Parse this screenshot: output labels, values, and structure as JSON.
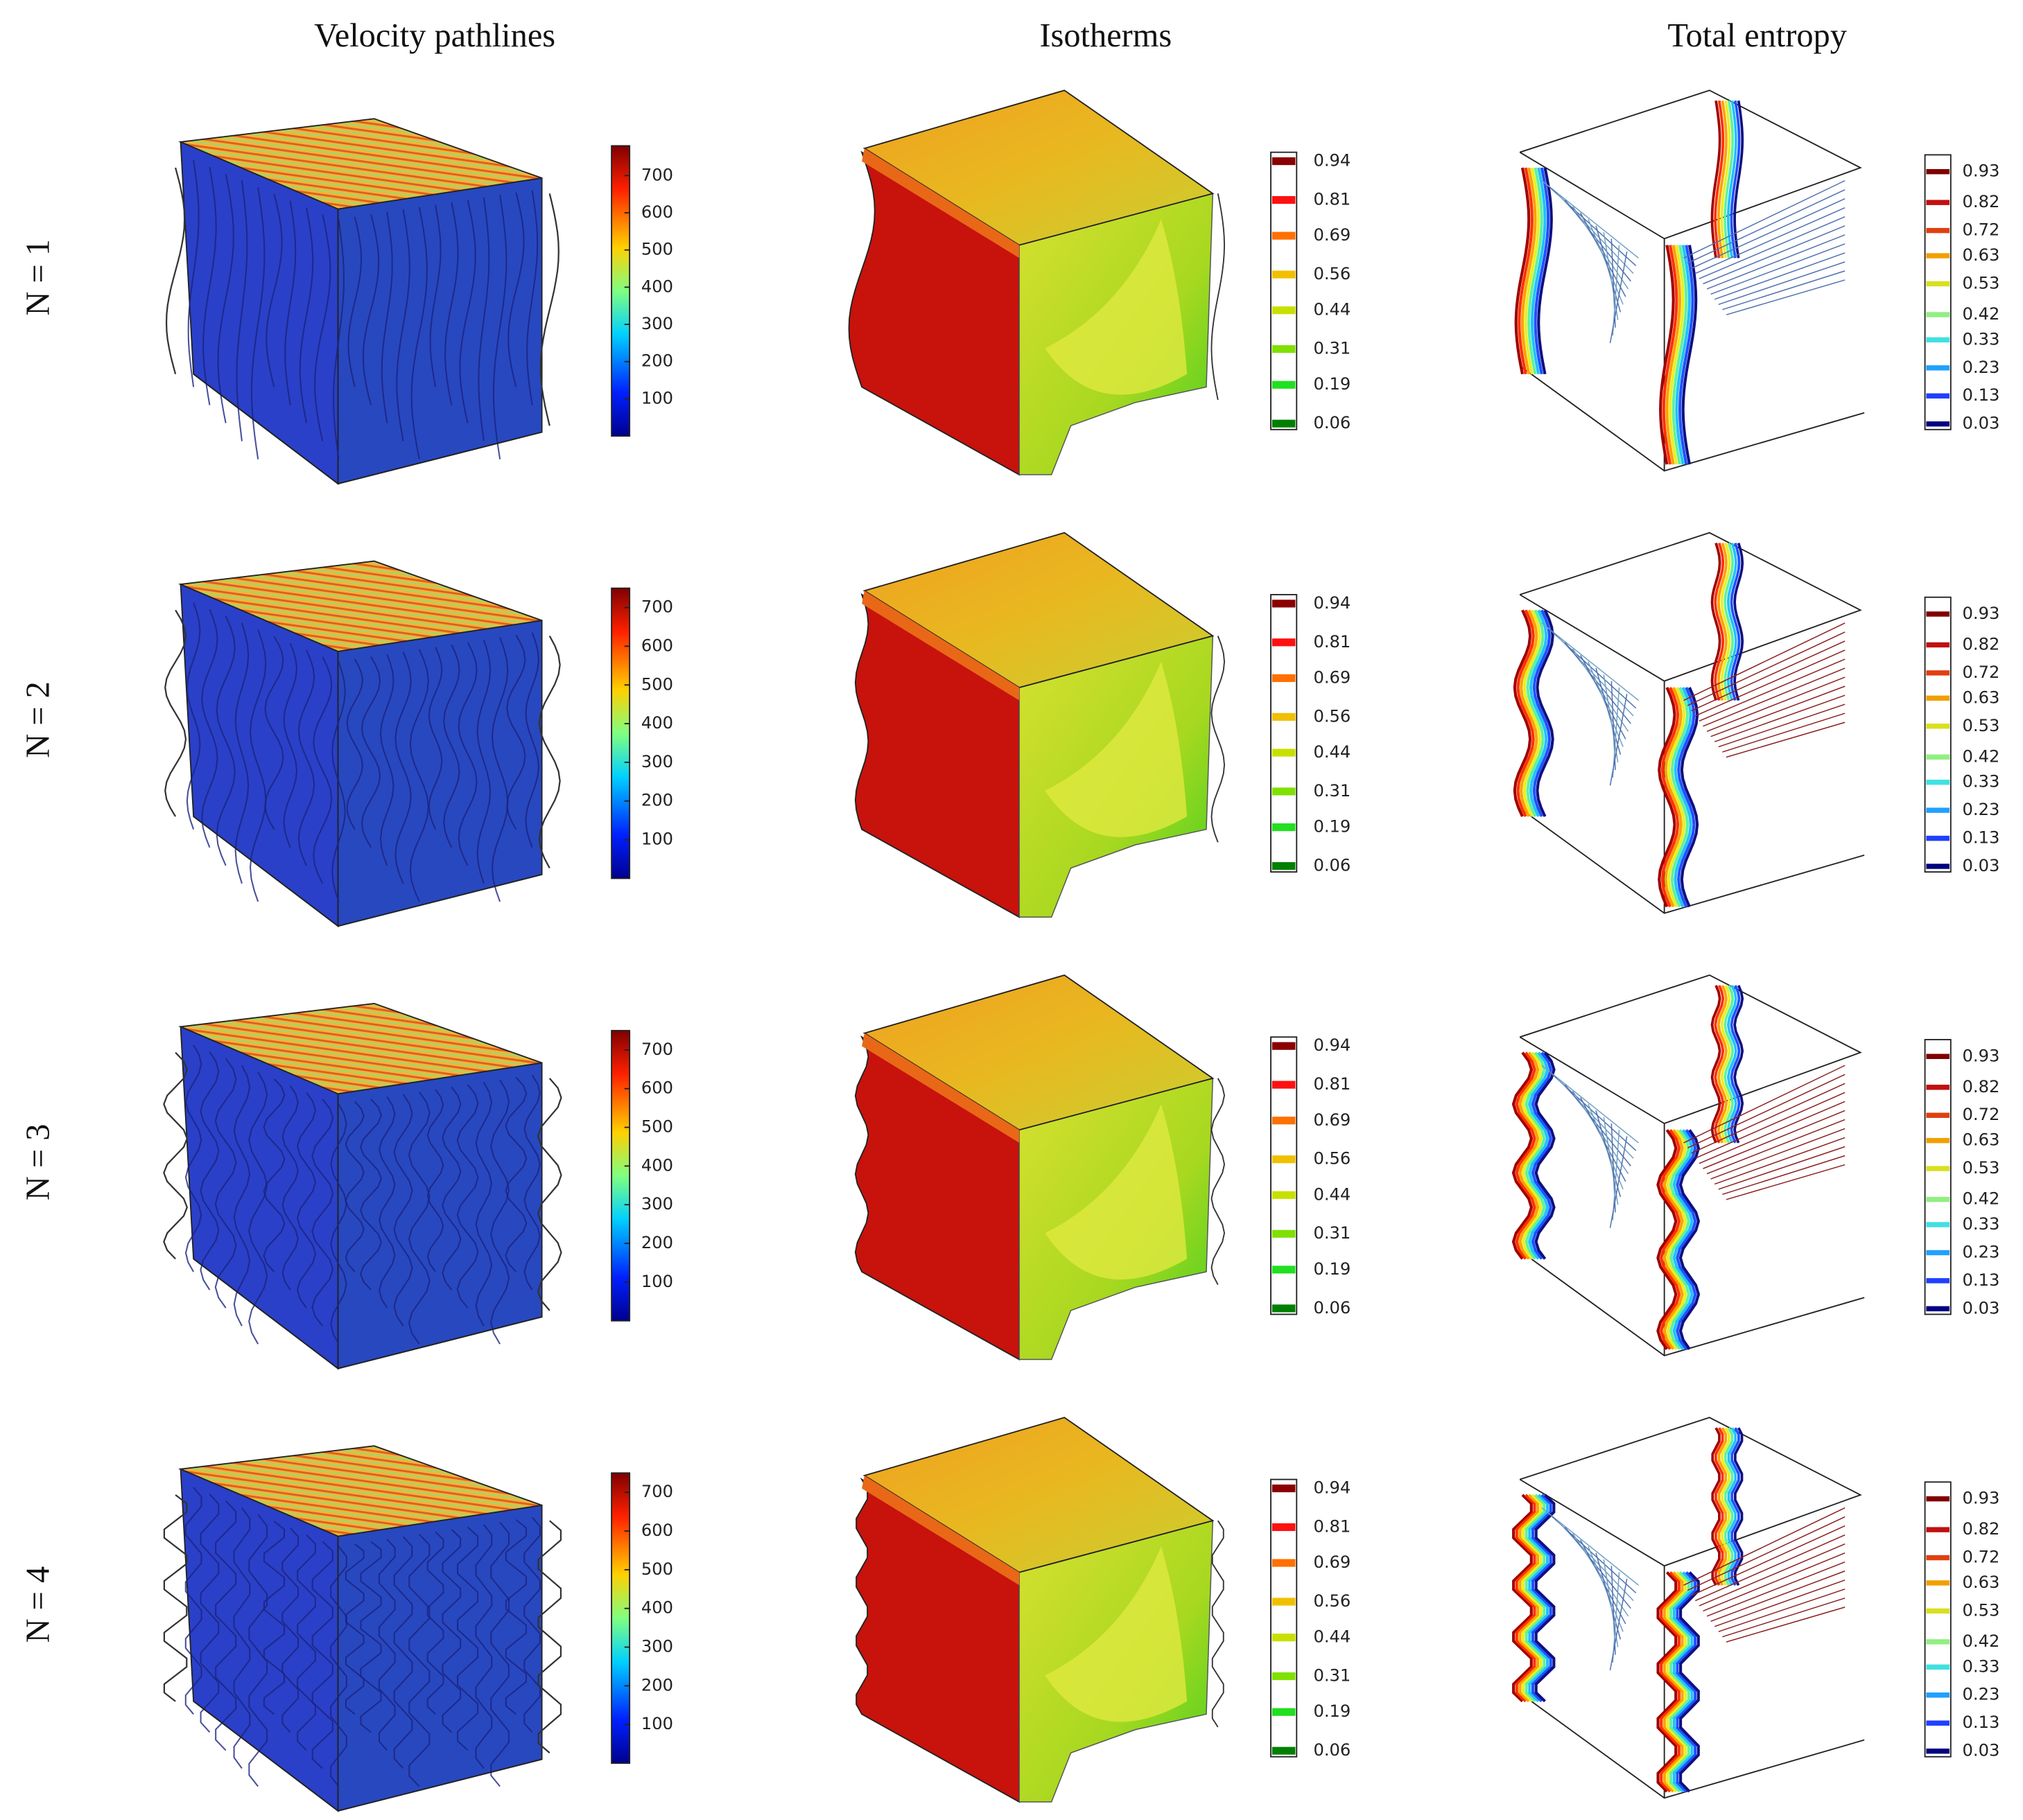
{
  "columns": [
    {
      "title": "Velocity pathlines",
      "colorbar": {
        "ticks": [
          100,
          200,
          300,
          400,
          500,
          600,
          700
        ],
        "limits": [
          [
            0,
            780
          ],
          [
            0,
            750
          ],
          [
            0,
            750
          ],
          [
            0,
            750
          ]
        ]
      }
    },
    {
      "title": "Isotherms",
      "colorbar": {
        "ticks": [
          0.94,
          0.81,
          0.69,
          0.56,
          0.44,
          0.31,
          0.19,
          0.06
        ],
        "limits": [
          [
            0.04,
            0.97
          ],
          [
            0.04,
            0.97
          ],
          [
            0.04,
            0.97
          ],
          [
            0.04,
            0.97
          ]
        ]
      }
    },
    {
      "title": "Total entropy",
      "colorbar": {
        "ticks": [
          0.93,
          0.82,
          0.72,
          0.63,
          0.53,
          0.42,
          0.33,
          0.23,
          0.13,
          0.03
        ],
        "limits": [
          [
            0.01,
            0.99
          ],
          [
            0.01,
            0.99
          ],
          [
            0.01,
            0.99
          ],
          [
            0.01,
            0.99
          ]
        ]
      }
    }
  ],
  "rows": [
    {
      "label": "N = 1"
    },
    {
      "label": "N = 2"
    },
    {
      "label": "N = 3"
    },
    {
      "label": "N = 4"
    }
  ]
}
